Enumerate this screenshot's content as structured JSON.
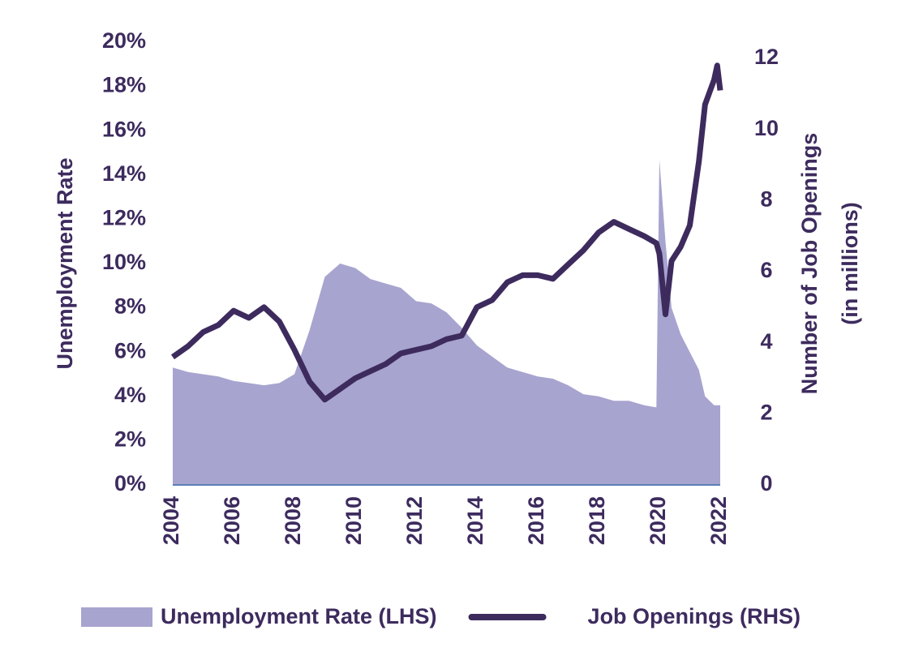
{
  "chart_data": {
    "type": "area-line",
    "x": [
      2004,
      2004.5,
      2005,
      2005.5,
      2006,
      2006.5,
      2007,
      2007.5,
      2008,
      2008.5,
      2009,
      2009.5,
      2010,
      2010.5,
      2011,
      2011.5,
      2012,
      2012.5,
      2013,
      2013.5,
      2014,
      2014.5,
      2015,
      2015.5,
      2016,
      2016.5,
      2017,
      2017.5,
      2018,
      2018.5,
      2019,
      2019.5,
      2019.9,
      2020,
      2020.2,
      2020.4,
      2020.7,
      2021,
      2021.3,
      2021.5,
      2021.8,
      2021.9,
      2022
    ],
    "series": [
      {
        "name": "Unemployment Rate (LHS)",
        "color": "#a7a4cf",
        "kind": "area",
        "axis": "y",
        "values": [
          5.3,
          5.1,
          5.0,
          4.9,
          4.7,
          4.6,
          4.5,
          4.6,
          5.0,
          7.0,
          9.4,
          10.0,
          9.8,
          9.3,
          9.1,
          8.9,
          8.3,
          8.2,
          7.8,
          7.1,
          6.3,
          5.8,
          5.3,
          5.1,
          4.9,
          4.8,
          4.5,
          4.1,
          4.0,
          3.8,
          3.8,
          3.6,
          3.5,
          14.7,
          11.0,
          8.0,
          6.8,
          6.0,
          5.2,
          4.0,
          3.6,
          3.6,
          3.6
        ]
      },
      {
        "name": "Job Openings (RHS)",
        "color": "#3d2b5e",
        "kind": "line",
        "axis": "y2",
        "values": [
          3.6,
          3.9,
          4.3,
          4.5,
          4.9,
          4.7,
          5.0,
          4.6,
          3.8,
          2.9,
          2.4,
          2.7,
          3.0,
          3.2,
          3.4,
          3.7,
          3.8,
          3.9,
          4.1,
          4.2,
          5.0,
          5.2,
          5.7,
          5.9,
          5.9,
          5.8,
          6.2,
          6.6,
          7.1,
          7.4,
          7.2,
          7.0,
          6.8,
          6.5,
          4.8,
          6.3,
          6.7,
          7.3,
          9.1,
          10.7,
          11.4,
          11.8,
          11.1
        ]
      }
    ],
    "y_label": "Unemployment Rate",
    "y2_label": [
      "Number of Job Openings",
      "(in millions)"
    ],
    "xlim": [
      2004,
      2022
    ],
    "xticks": [
      2004,
      2006,
      2008,
      2010,
      2012,
      2014,
      2016,
      2018,
      2020,
      2022
    ],
    "ylim": [
      0,
      20
    ],
    "yticks": [
      {
        "value": 0,
        "label": "0%"
      },
      {
        "value": 2,
        "label": "2%"
      },
      {
        "value": 4,
        "label": "4%"
      },
      {
        "value": 6,
        "label": "6%"
      },
      {
        "value": 8,
        "label": "8%"
      },
      {
        "value": 10,
        "label": "10%"
      },
      {
        "value": 12,
        "label": "12%"
      },
      {
        "value": 14,
        "label": "14%"
      },
      {
        "value": 16,
        "label": "16%"
      },
      {
        "value": 18,
        "label": "18%"
      },
      {
        "value": 20,
        "label": "20%"
      }
    ],
    "y2lim": [
      0,
      12
    ],
    "y2ticks": [
      0,
      2,
      4,
      6,
      8,
      10,
      12
    ],
    "legend": "bottom",
    "grid": false
  }
}
